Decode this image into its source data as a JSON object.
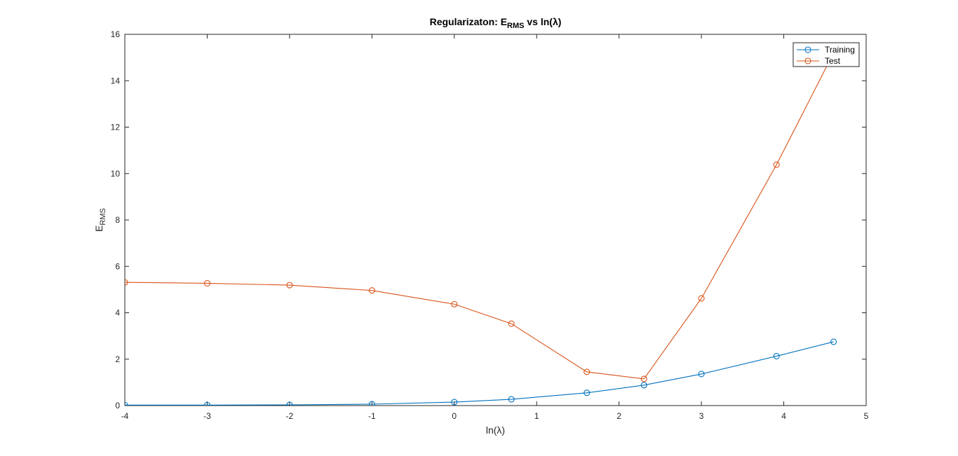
{
  "chart_data": {
    "type": "line",
    "title": {
      "prefix": "Regularizaton: E",
      "subscript": "RMS",
      "suffix": " vs ln(λ)"
    },
    "xlabel": "ln(λ)",
    "ylabel": {
      "main": "E",
      "subscript": "RMS"
    },
    "xlim": [
      -4,
      5
    ],
    "ylim": [
      0,
      16
    ],
    "xticks": [
      -4,
      -3,
      -2,
      -1,
      0,
      1,
      2,
      3,
      4,
      5
    ],
    "yticks": [
      0,
      2,
      4,
      6,
      8,
      10,
      12,
      14,
      16
    ],
    "grid": false,
    "legend_position": "top-right",
    "series": [
      {
        "name": "Training",
        "color": "#0072BD",
        "marker": "circle",
        "x": [
          -4,
          -3,
          -2,
          -1,
          0,
          0.693,
          1.609,
          2.303,
          3,
          3.912,
          4.605
        ],
        "y": [
          0.02,
          0.02,
          0.03,
          0.06,
          0.15,
          0.27,
          0.55,
          0.88,
          1.36,
          2.13,
          2.75
        ]
      },
      {
        "name": "Test",
        "color": "#D95319",
        "marker": "circle",
        "x": [
          -4,
          -3,
          -2,
          -1,
          0,
          0.693,
          1.609,
          2.303,
          3,
          3.912,
          4.605
        ],
        "y": [
          5.31,
          5.27,
          5.19,
          4.96,
          4.37,
          3.53,
          1.45,
          1.15,
          4.62,
          10.38,
          15.2
        ]
      }
    ]
  }
}
